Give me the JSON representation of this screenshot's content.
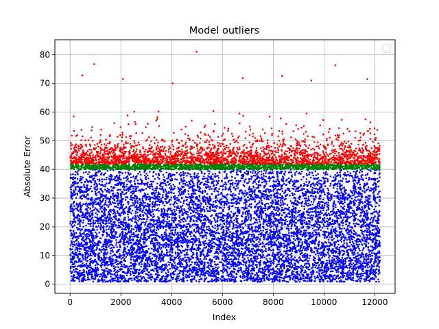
{
  "chart_data": {
    "type": "scatter",
    "title": "Model outliers",
    "xlabel": "Index",
    "ylabel": "Absolute Error",
    "xlim": [
      -600,
      12800
    ],
    "ylim": [
      -3.2,
      85.2
    ],
    "xticks": [
      0,
      2000,
      4000,
      6000,
      8000,
      10000,
      12000
    ],
    "yticks": [
      0,
      10,
      20,
      30,
      40,
      50,
      60,
      70,
      80
    ],
    "grid": true,
    "legend": {
      "placement": "top-right",
      "entries": []
    },
    "n_points": 12200,
    "series": [
      {
        "color": "#0000ff",
        "y_range": [
          0,
          40
        ],
        "description_range": "inliers"
      },
      {
        "color": "#008000",
        "y_range": [
          40,
          42
        ]
      },
      {
        "color": "#ff0000",
        "y_range": [
          42,
          81
        ]
      }
    ],
    "highlighted_points": [
      {
        "x": 4980,
        "y": 81.0
      },
      {
        "x": 950,
        "y": 76.7
      },
      {
        "x": 10450,
        "y": 76.3
      },
      {
        "x": 480,
        "y": 72.8
      },
      {
        "x": 8350,
        "y": 72.6
      },
      {
        "x": 2080,
        "y": 71.5
      },
      {
        "x": 11700,
        "y": 71.5
      },
      {
        "x": 6800,
        "y": 71.8
      },
      {
        "x": 9500,
        "y": 71.0
      },
      {
        "x": 4040,
        "y": 70.0
      }
    ]
  }
}
